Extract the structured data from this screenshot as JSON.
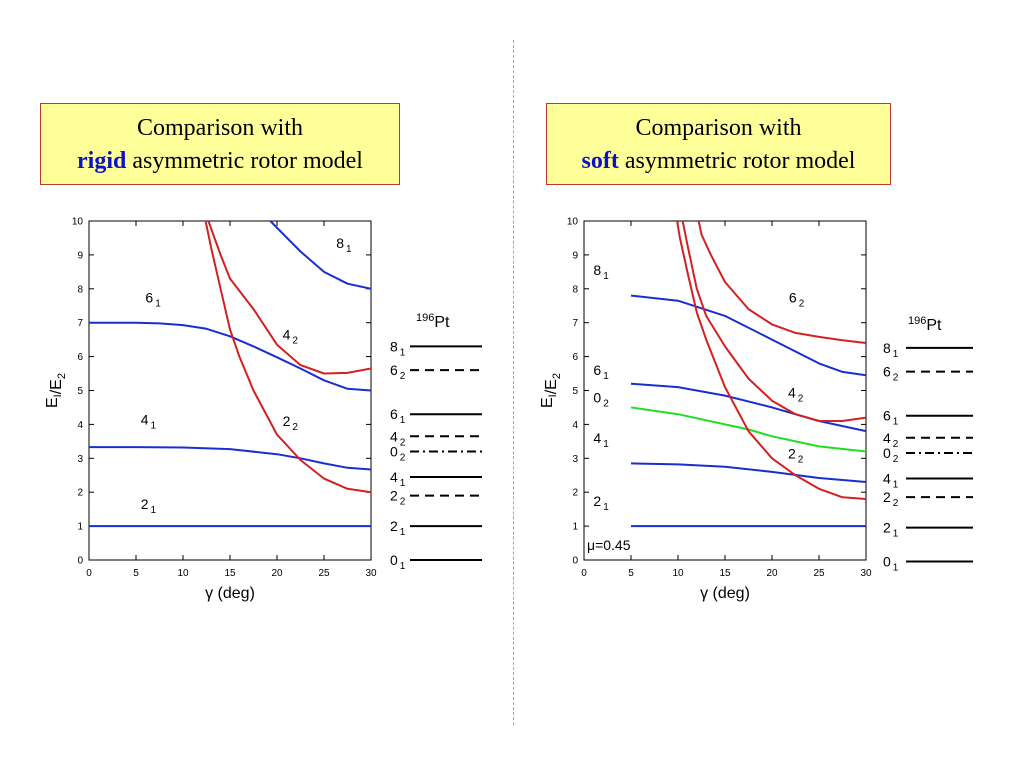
{
  "left_title": {
    "line1": "Comparison with",
    "keyword": "rigid",
    "rest": "asymmetric rotor model"
  },
  "right_title": {
    "line1": "Comparison with",
    "keyword": "soft",
    "rest": "asymmetric rotor model"
  },
  "colors": {
    "blue": "#1a2ed0",
    "red": "#d42020",
    "green": "#22dd22",
    "keyword": "#0b10c9",
    "title_bg": "#ffff99",
    "title_border": "#c0392b"
  },
  "chart_data": [
    {
      "type": "line",
      "xlabel": "γ (deg)",
      "ylabel": "E_I/E_2",
      "xlim": [
        0,
        30
      ],
      "ylim": [
        0,
        10
      ],
      "xticks": [
        0,
        5,
        10,
        15,
        20,
        25,
        30
      ],
      "yticks": [
        0,
        1,
        2,
        3,
        4,
        5,
        6,
        7,
        8,
        9,
        10
      ],
      "series": [
        {
          "name": "2_1",
          "color": "blue",
          "x": [
            0,
            30
          ],
          "y": [
            1.0,
            1.0
          ]
        },
        {
          "name": "4_1",
          "color": "blue",
          "x": [
            0,
            5,
            10,
            15,
            20,
            22.5,
            25,
            27.5,
            30
          ],
          "y": [
            3.33,
            3.33,
            3.32,
            3.27,
            3.12,
            3.0,
            2.85,
            2.72,
            2.67
          ]
        },
        {
          "name": "6_1",
          "color": "blue",
          "x": [
            0,
            5,
            7.5,
            10,
            12.5,
            15,
            17.5,
            20,
            22.5,
            25,
            27.5,
            30
          ],
          "y": [
            7.0,
            7.0,
            6.98,
            6.93,
            6.82,
            6.6,
            6.3,
            5.98,
            5.65,
            5.3,
            5.05,
            5.0
          ]
        },
        {
          "name": "8_1",
          "color": "blue",
          "x": [
            19.3,
            20,
            22.5,
            25,
            27.5,
            30
          ],
          "y": [
            10.0,
            9.8,
            9.1,
            8.5,
            8.15,
            8.0
          ]
        },
        {
          "name": "2_2",
          "color": "red",
          "x": [
            12.4,
            13,
            14,
            15,
            16,
            17.5,
            20,
            22.5,
            25,
            27.5,
            30
          ],
          "y": [
            10.0,
            9.2,
            8.0,
            6.8,
            6.0,
            5.0,
            3.7,
            2.95,
            2.4,
            2.1,
            2.0
          ]
        },
        {
          "name": "4_2",
          "color": "red",
          "x": [
            12.7,
            14,
            15,
            17.5,
            20,
            22.5,
            25,
            27.5,
            30
          ],
          "y": [
            10.0,
            9.0,
            8.3,
            7.4,
            6.35,
            5.75,
            5.5,
            5.52,
            5.65
          ]
        }
      ],
      "curve_labels": [
        {
          "level": "8",
          "index": "1",
          "x": 26.3,
          "y": 9.2
        },
        {
          "level": "6",
          "index": "1",
          "x": 6.0,
          "y": 7.6
        },
        {
          "level": "4",
          "index": "2",
          "x": 20.6,
          "y": 6.5
        },
        {
          "level": "4",
          "index": "1",
          "x": 5.5,
          "y": 4.0
        },
        {
          "level": "2",
          "index": "2",
          "x": 20.6,
          "y": 3.95
        },
        {
          "level": "2",
          "index": "1",
          "x": 5.5,
          "y": 1.5
        }
      ],
      "experiment": {
        "nucleus_mass": "196",
        "nucleus_symbol": "Pt",
        "levels": [
          {
            "spin": "8",
            "index": "1",
            "value": 6.3,
            "style": "solid"
          },
          {
            "spin": "6",
            "index": "2",
            "value": 5.6,
            "style": "dashed"
          },
          {
            "spin": "6",
            "index": "1",
            "value": 4.3,
            "style": "solid"
          },
          {
            "spin": "4",
            "index": "2",
            "value": 3.65,
            "style": "dashed"
          },
          {
            "spin": "0",
            "index": "2",
            "value": 3.2,
            "style": "dashdot"
          },
          {
            "spin": "4",
            "index": "1",
            "value": 2.45,
            "style": "solid"
          },
          {
            "spin": "2",
            "index": "2",
            "value": 1.9,
            "style": "dashed"
          },
          {
            "spin": "2",
            "index": "1",
            "value": 1.0,
            "style": "solid"
          },
          {
            "spin": "0",
            "index": "1",
            "value": 0.0,
            "style": "solid"
          }
        ]
      }
    },
    {
      "type": "line",
      "xlabel": "γ (deg)",
      "ylabel": "E_I/E_2",
      "xlim": [
        0,
        30
      ],
      "ylim": [
        0,
        10
      ],
      "xticks": [
        0,
        5,
        10,
        15,
        20,
        25,
        30
      ],
      "yticks": [
        0,
        1,
        2,
        3,
        4,
        5,
        6,
        7,
        8,
        9,
        10
      ],
      "annotation": "μ=0.45",
      "series": [
        {
          "name": "2_1",
          "color": "blue",
          "x": [
            5,
            30
          ],
          "y": [
            1.0,
            1.0
          ]
        },
        {
          "name": "4_1",
          "color": "blue",
          "x": [
            5,
            10,
            15,
            20,
            25,
            30
          ],
          "y": [
            2.85,
            2.82,
            2.75,
            2.6,
            2.42,
            2.3
          ]
        },
        {
          "name": "0_2",
          "color": "green",
          "x": [
            5,
            10,
            15,
            17.5,
            20,
            25,
            30
          ],
          "y": [
            4.5,
            4.3,
            4.0,
            3.85,
            3.65,
            3.35,
            3.2
          ]
        },
        {
          "name": "6_1",
          "color": "blue",
          "x": [
            5,
            10,
            15,
            20,
            25,
            30
          ],
          "y": [
            5.2,
            5.1,
            4.85,
            4.5,
            4.1,
            3.8
          ]
        },
        {
          "name": "8_1",
          "color": "blue",
          "x": [
            5,
            10,
            15,
            20,
            25,
            27.5,
            30
          ],
          "y": [
            7.8,
            7.65,
            7.2,
            6.5,
            5.8,
            5.55,
            5.45
          ]
        },
        {
          "name": "2_2",
          "color": "red",
          "x": [
            9.9,
            10.2,
            11,
            12,
            13,
            15,
            17.5,
            20,
            22.5,
            25,
            27.5,
            30
          ],
          "y": [
            10.0,
            9.5,
            8.5,
            7.3,
            6.5,
            5.1,
            3.8,
            3.0,
            2.5,
            2.1,
            1.85,
            1.8
          ]
        },
        {
          "name": "4_2",
          "color": "red",
          "x": [
            10.5,
            11,
            12,
            13,
            15,
            17.5,
            20,
            22.5,
            25,
            27.5,
            30
          ],
          "y": [
            10.0,
            9.3,
            8.0,
            7.2,
            6.3,
            5.35,
            4.7,
            4.3,
            4.1,
            4.1,
            4.2
          ]
        },
        {
          "name": "6_2",
          "color": "red",
          "x": [
            12.2,
            12.5,
            13.5,
            15,
            17.5,
            20,
            22.5,
            25,
            27.5,
            30
          ],
          "y": [
            10.0,
            9.6,
            9.0,
            8.2,
            7.4,
            6.95,
            6.7,
            6.58,
            6.48,
            6.4
          ]
        }
      ],
      "curve_labels": [
        {
          "level": "8",
          "index": "1",
          "x": 1.0,
          "y": 8.4
        },
        {
          "level": "6",
          "index": "2",
          "x": 21.8,
          "y": 7.6
        },
        {
          "level": "6",
          "index": "1",
          "x": 1.0,
          "y": 5.45
        },
        {
          "level": "0",
          "index": "2",
          "x": 1.0,
          "y": 4.65
        },
        {
          "level": "4",
          "index": "2",
          "x": 21.7,
          "y": 4.8
        },
        {
          "level": "4",
          "index": "1",
          "x": 1.0,
          "y": 3.45
        },
        {
          "level": "2",
          "index": "2",
          "x": 21.7,
          "y": 3.0
        },
        {
          "level": "2",
          "index": "1",
          "x": 1.0,
          "y": 1.6
        }
      ],
      "experiment": {
        "nucleus_mass": "196",
        "nucleus_symbol": "Pt",
        "levels": [
          {
            "spin": "8",
            "index": "1",
            "value": 6.3,
            "style": "solid"
          },
          {
            "spin": "6",
            "index": "2",
            "value": 5.6,
            "style": "dashed"
          },
          {
            "spin": "6",
            "index": "1",
            "value": 4.3,
            "style": "solid"
          },
          {
            "spin": "4",
            "index": "2",
            "value": 3.65,
            "style": "dashed"
          },
          {
            "spin": "0",
            "index": "2",
            "value": 3.2,
            "style": "dashdot"
          },
          {
            "spin": "4",
            "index": "1",
            "value": 2.45,
            "style": "solid"
          },
          {
            "spin": "2",
            "index": "2",
            "value": 1.9,
            "style": "dashed"
          },
          {
            "spin": "2",
            "index": "1",
            "value": 1.0,
            "style": "solid"
          },
          {
            "spin": "0",
            "index": "1",
            "value": 0.0,
            "style": "solid"
          }
        ]
      }
    }
  ]
}
